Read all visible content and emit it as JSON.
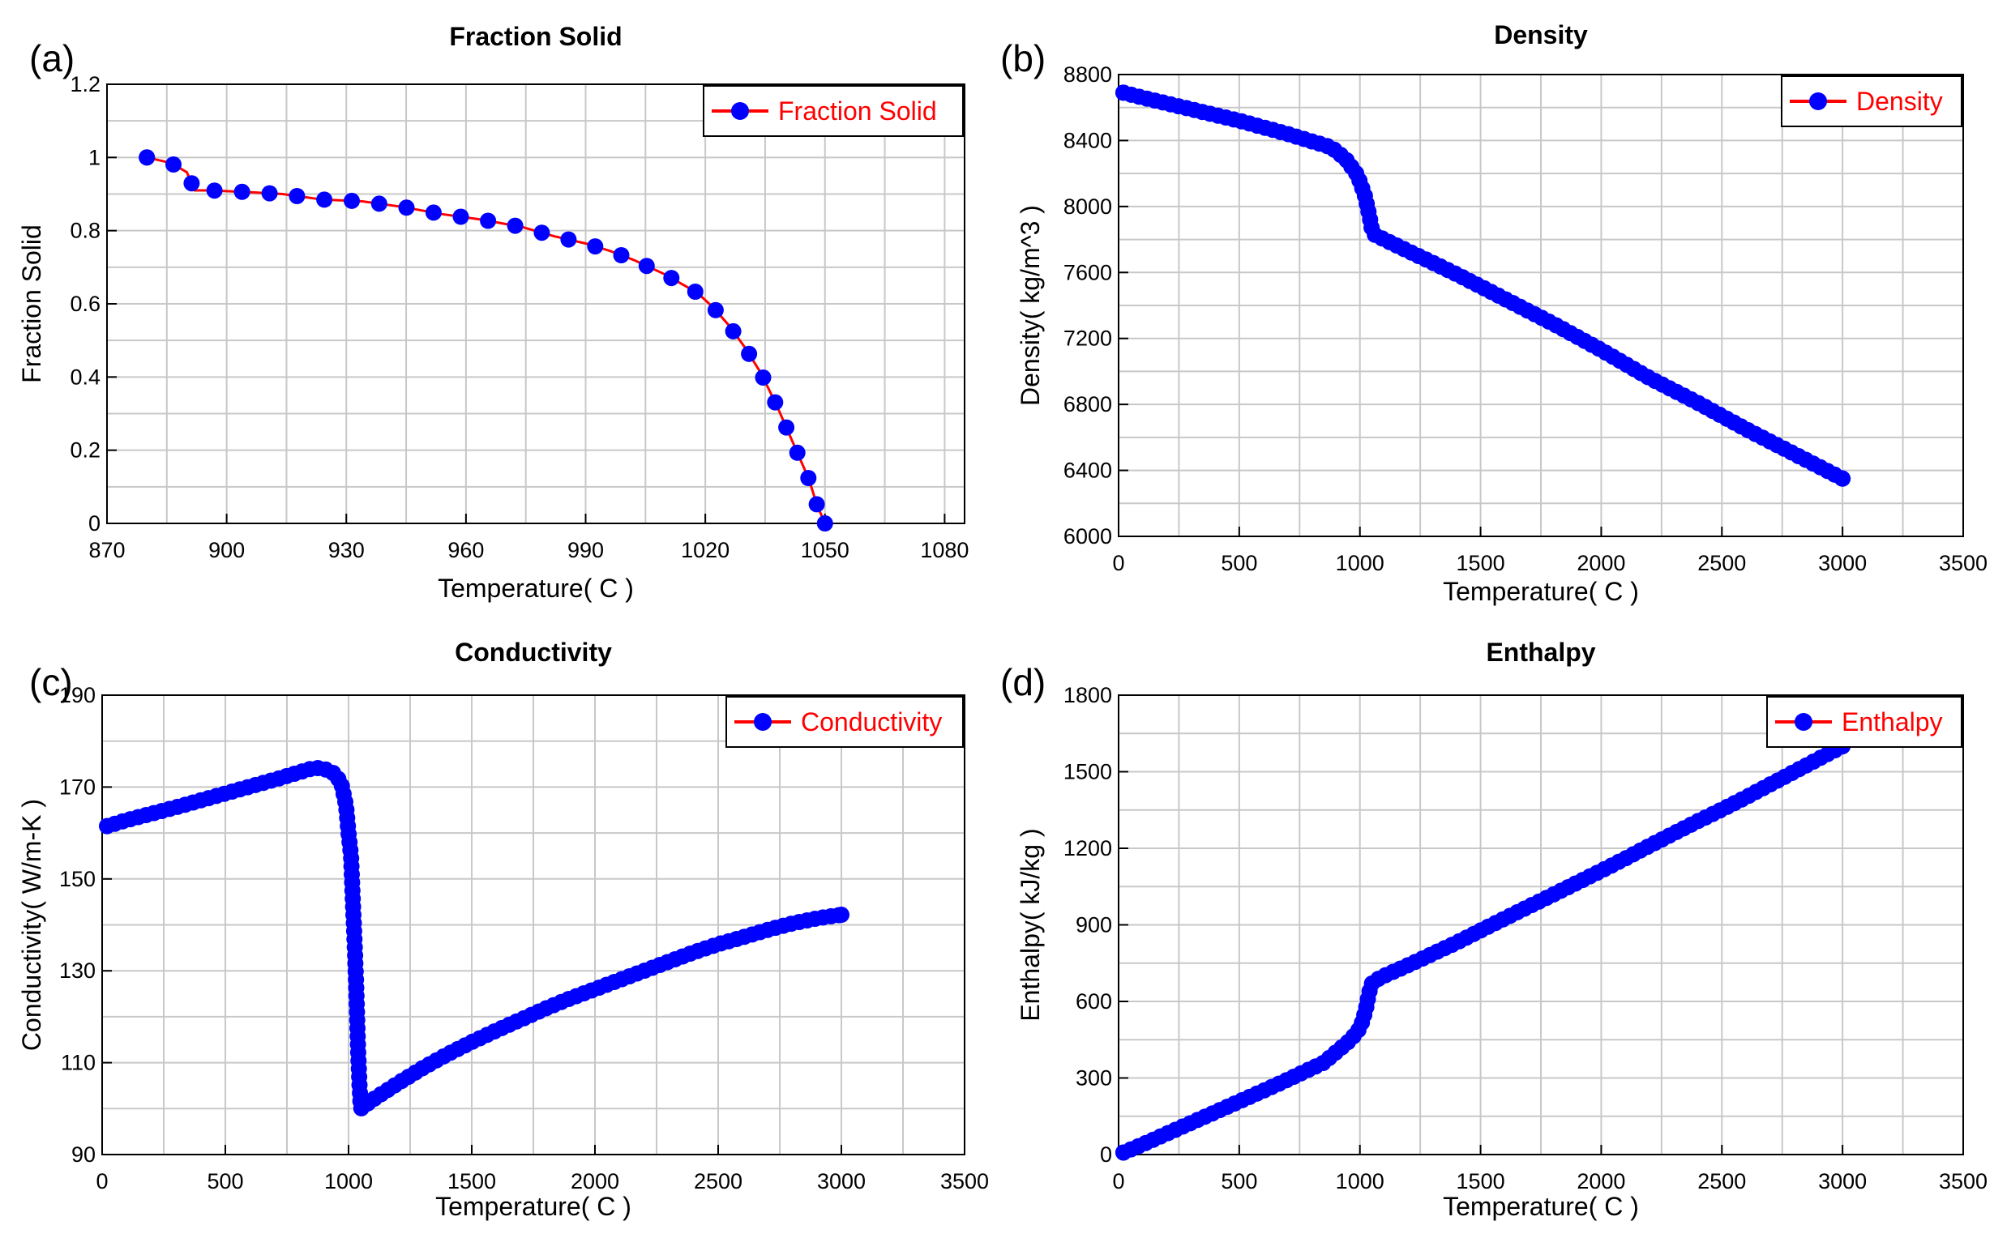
{
  "colors": {
    "line": "#ff0000",
    "marker": "#0000ff",
    "grid": "#c8c8c8",
    "axis": "#000000",
    "legend_text": "#ff0000"
  },
  "chart_data": [
    {
      "panel_label": "(a)",
      "type": "line",
      "title": "Fraction Solid",
      "xlabel": "Temperature( C )",
      "ylabel": "Fraction Solid",
      "xlim": [
        870,
        1085
      ],
      "ylim": [
        0,
        1.2
      ],
      "xticks": [
        870,
        900,
        930,
        960,
        990,
        1020,
        1050,
        1080
      ],
      "yticks": [
        0,
        0.2,
        0.4,
        0.6,
        0.8,
        1,
        1.2
      ],
      "xtick_labels": [
        "870",
        "900",
        "930",
        "960",
        "990",
        "1020",
        "1050",
        "1080"
      ],
      "ytick_labels": [
        "0",
        "0.2",
        "0.4",
        "0.6",
        "0.8",
        "1",
        "1.2"
      ],
      "legend": "top-right",
      "series": [
        {
          "name": "Fraction Solid",
          "x": [
            880,
            886,
            890,
            892,
            896,
            906,
            914,
            924,
            934,
            944,
            954,
            964,
            974,
            982,
            990,
            996,
            1002,
            1006,
            1010,
            1014,
            1018,
            1022,
            1026,
            1030,
            1034,
            1038,
            1042,
            1046,
            1048,
            1050
          ],
          "y": [
            1.0,
            0.985,
            0.96,
            0.91,
            0.91,
            0.905,
            0.9,
            0.885,
            0.88,
            0.865,
            0.845,
            0.83,
            0.81,
            0.785,
            0.765,
            0.745,
            0.72,
            0.7,
            0.68,
            0.655,
            0.63,
            0.59,
            0.54,
            0.48,
            0.41,
            0.32,
            0.22,
            0.12,
            0.05,
            0.0
          ]
        }
      ]
    },
    {
      "panel_label": "(b)",
      "type": "line",
      "title": "Density",
      "xlabel": "Temperature( C )",
      "ylabel": "Density( kg/m^3 )",
      "xlim": [
        0,
        3500
      ],
      "ylim": [
        6000,
        8800
      ],
      "xticks": [
        0,
        500,
        1000,
        1500,
        2000,
        2500,
        3000,
        3500
      ],
      "yticks": [
        6000,
        6400,
        6800,
        7200,
        7600,
        8000,
        8400,
        8800
      ],
      "xtick_labels": [
        "0",
        "500",
        "1000",
        "1500",
        "2000",
        "2500",
        "3000",
        "3500"
      ],
      "ytick_labels": [
        "6000",
        "6400",
        "6800",
        "7200",
        "7600",
        "8000",
        "8400",
        "8800"
      ],
      "legend": "top-right",
      "series": [
        {
          "name": "Density",
          "x": [
            20,
            100,
            200,
            300,
            400,
            500,
            600,
            700,
            800,
            880,
            940,
            990,
            1020,
            1040,
            1050,
            1060,
            1100,
            1200,
            1400,
            1600,
            1800,
            2000,
            2200,
            2400,
            2600,
            2800,
            3000
          ],
          "y": [
            8690,
            8660,
            8625,
            8590,
            8555,
            8520,
            8480,
            8440,
            8395,
            8360,
            8290,
            8190,
            8070,
            7940,
            7860,
            7830,
            7800,
            7730,
            7590,
            7440,
            7290,
            7130,
            6960,
            6810,
            6650,
            6500,
            6350
          ]
        }
      ]
    },
    {
      "panel_label": "(c)",
      "type": "line",
      "title": "Conductivity",
      "xlabel": "Temperature( C )",
      "ylabel": "Conductivity( W/m-K )",
      "xlim": [
        0,
        3500
      ],
      "ylim": [
        90,
        190
      ],
      "xticks": [
        0,
        500,
        1000,
        1500,
        2000,
        2500,
        3000,
        3500
      ],
      "yticks": [
        90,
        110,
        130,
        150,
        170,
        190
      ],
      "xtick_labels": [
        "0",
        "500",
        "1000",
        "1500",
        "2000",
        "2500",
        "3000",
        "3500"
      ],
      "ytick_labels": [
        "90",
        "110",
        "130",
        "150",
        "170",
        "190"
      ],
      "legend": "top-right",
      "series": [
        {
          "name": "Conductivity",
          "x": [
            20,
            100,
            200,
            300,
            400,
            500,
            600,
            700,
            800,
            860,
            900,
            940,
            970,
            990,
            1000,
            1010,
            1015,
            1020,
            1025,
            1030,
            1035,
            1040,
            1045,
            1050,
            1100,
            1200,
            1300,
            1400,
            1500,
            1600,
            1700,
            1800,
            1900,
            2000,
            2100,
            2200,
            2300,
            2400,
            2500,
            2600,
            2700,
            2800,
            2900,
            3000
          ],
          "y": [
            161.5,
            162.8,
            164.2,
            165.6,
            167.1,
            168.6,
            170.1,
            171.6,
            173.2,
            174.2,
            174.0,
            173.0,
            171.0,
            166.0,
            160.0,
            155.0,
            148.5,
            142.0,
            135.5,
            128.5,
            119.5,
            111.0,
            104.5,
            100.0,
            102.0,
            105.5,
            108.8,
            111.8,
            114.5,
            117.0,
            119.4,
            121.8,
            124.0,
            126.0,
            128.0,
            130.0,
            132.0,
            134.0,
            135.8,
            137.3,
            138.9,
            140.3,
            141.4,
            142.2
          ]
        }
      ]
    },
    {
      "panel_label": "(d)",
      "type": "line",
      "title": "Enthalpy",
      "xlabel": "Temperature( C )",
      "ylabel": "Enthalpy( kJ/kg )",
      "xlim": [
        0,
        3500
      ],
      "ylim": [
        0,
        1800
      ],
      "xticks": [
        0,
        500,
        1000,
        1500,
        2000,
        2500,
        3000,
        3500
      ],
      "yticks": [
        0,
        300,
        600,
        900,
        1200,
        1500,
        1800
      ],
      "xtick_labels": [
        "0",
        "500",
        "1000",
        "1500",
        "2000",
        "2500",
        "3000",
        "3500"
      ],
      "ytick_labels": [
        "0",
        "300",
        "600",
        "900",
        "1200",
        "1500",
        "1800"
      ],
      "legend": "top-right",
      "series": [
        {
          "name": "Enthalpy",
          "x": [
            20,
            100,
            200,
            300,
            400,
            500,
            600,
            700,
            800,
            850,
            900,
            950,
            990,
            1010,
            1025,
            1035,
            1045,
            1050,
            1060,
            1100,
            1200,
            1300,
            1400,
            1500,
            1600,
            1700,
            1800,
            1900,
            2000,
            2100,
            2200,
            2300,
            2400,
            2500,
            2600,
            2700,
            2800,
            2900,
            3000
          ],
          "y": [
            8,
            40,
            82,
            124,
            166,
            208,
            250,
            293,
            338,
            360,
            400,
            440,
            480,
            520,
            570,
            620,
            660,
            670,
            680,
            700,
            742,
            786,
            830,
            878,
            925,
            972,
            1018,
            1065,
            1112,
            1160,
            1210,
            1258,
            1306,
            1352,
            1400,
            1450,
            1500,
            1550,
            1600
          ]
        }
      ]
    }
  ]
}
